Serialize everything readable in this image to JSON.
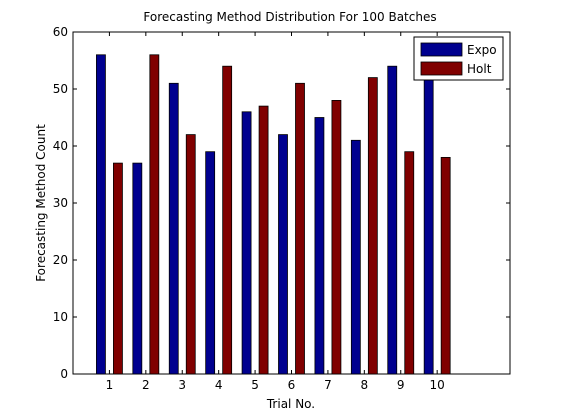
{
  "chart_data": {
    "type": "bar",
    "title": "Forecasting Method Distribution For 100 Batches",
    "xlabel": "Trial No.",
    "ylabel": "Forecasting Method Count",
    "categories": [
      "1",
      "2",
      "3",
      "4",
      "5",
      "6",
      "7",
      "8",
      "9",
      "10"
    ],
    "series": [
      {
        "name": "Expo",
        "color": "#00008f",
        "values": [
          56,
          37,
          51,
          39,
          46,
          42,
          45,
          41,
          54,
          53
        ]
      },
      {
        "name": "Holt",
        "color": "#800000",
        "values": [
          37,
          56,
          42,
          54,
          47,
          51,
          48,
          52,
          39,
          38
        ]
      }
    ],
    "xlim": [
      0,
      12
    ],
    "ylim": [
      0,
      60
    ],
    "yticks": [
      "0",
      "10",
      "20",
      "30",
      "40",
      "50",
      "60"
    ],
    "grid": false,
    "legend_position": "top-right"
  }
}
